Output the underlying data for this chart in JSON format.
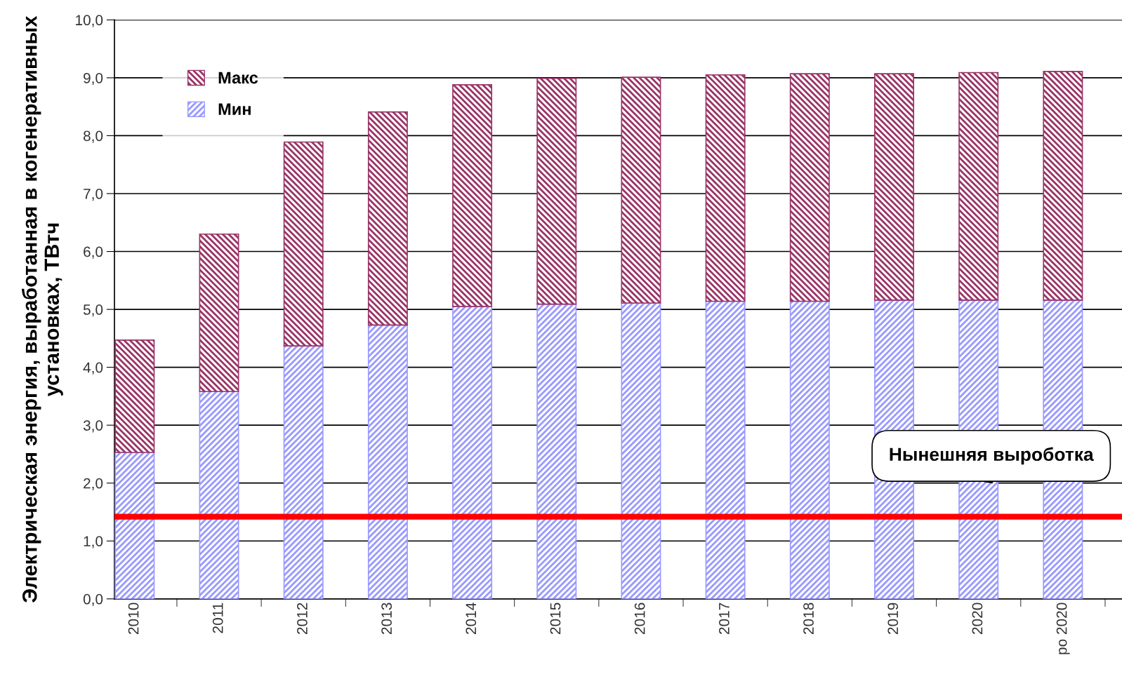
{
  "chart_data": {
    "type": "bar",
    "stacked": true,
    "ylabel": "Электрическая энергия, выработанная в когенеративных\nустановках, ТВтч",
    "categories": [
      "2010",
      "2011",
      "2012",
      "2013",
      "2014",
      "2015",
      "2016",
      "2017",
      "2018",
      "2019",
      "2020",
      "po 2020"
    ],
    "series": [
      {
        "name": "Мин",
        "color": "#9999ff",
        "values": [
          2.53,
          3.58,
          4.37,
          4.73,
          5.05,
          5.09,
          5.11,
          5.14,
          5.14,
          5.16,
          5.16,
          5.16
        ]
      },
      {
        "name": "Макс",
        "color": "#993366",
        "values": [
          1.94,
          2.72,
          3.52,
          3.68,
          3.83,
          3.9,
          3.9,
          3.91,
          3.93,
          3.91,
          3.93,
          3.95
        ]
      }
    ],
    "ylim": [
      0,
      10
    ],
    "yticks": [
      {
        "value": 0,
        "label": "0,0"
      },
      {
        "value": 1,
        "label": "1,0"
      },
      {
        "value": 2,
        "label": "2,0"
      },
      {
        "value": 3,
        "label": "3,0"
      },
      {
        "value": 4,
        "label": "4,0"
      },
      {
        "value": 5,
        "label": "5,0"
      },
      {
        "value": 6,
        "label": "6,0"
      },
      {
        "value": 7,
        "label": "7,0"
      },
      {
        "value": 8,
        "label": "8,0"
      },
      {
        "value": 9,
        "label": "9,0"
      },
      {
        "value": 10,
        "label": "10,0"
      }
    ],
    "ref_lines": [
      {
        "axis": "y",
        "value": 1.42,
        "label": "Нынешняя выроботка",
        "color": "#ff0000"
      }
    ],
    "grid": "y",
    "legend": "top left"
  }
}
